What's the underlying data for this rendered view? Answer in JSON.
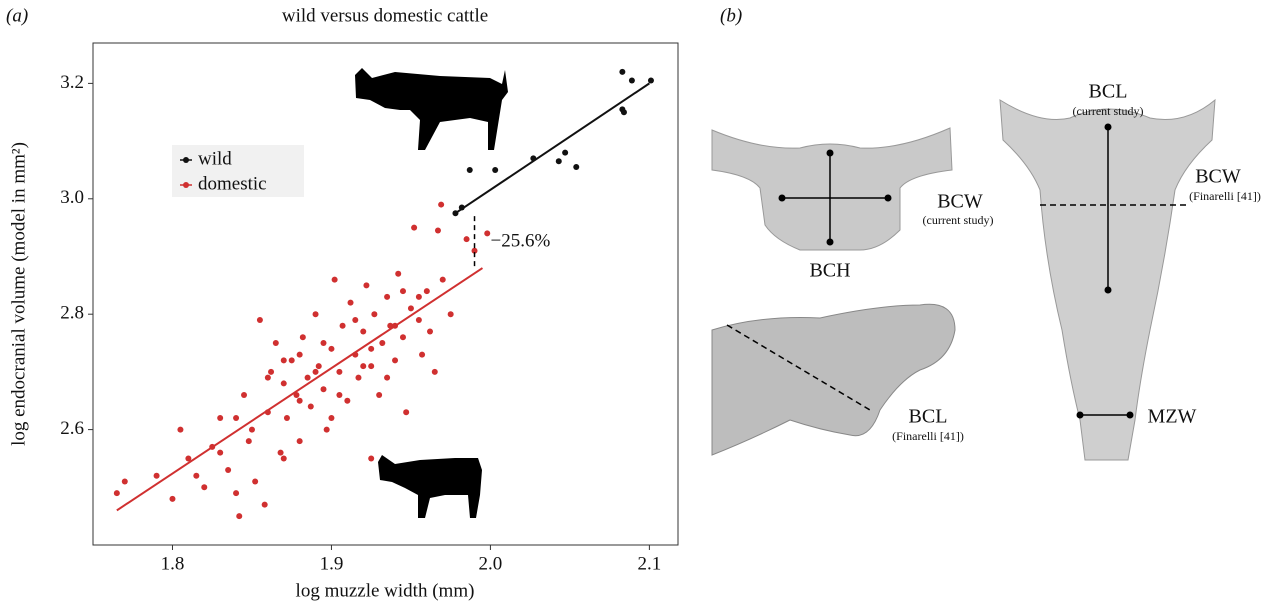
{
  "panels": [
    "(a)",
    "(b)"
  ],
  "chart_data": {
    "type": "scatter",
    "title": "wild versus domestic cattle",
    "xlabel": "log muzzle width (mm)",
    "ylabel": "log endocranial volume (model in mm²)",
    "xlim": [
      1.75,
      2.118
    ],
    "ylim": [
      2.4,
      3.27
    ],
    "xticks": [
      1.8,
      1.9,
      {
        "value": 2,
        "label": "2.0"
      },
      2.1
    ],
    "yticks": [
      2.6,
      2.8,
      {
        "value": 3,
        "label": "3.0"
      },
      3.2
    ],
    "grid": false,
    "series": [
      {
        "name": "wild",
        "color": "#111111",
        "x": [
          2.083,
          2.089,
          2.101,
          2.083,
          2.084,
          1.987,
          2.003,
          2.027,
          2.043,
          2.047,
          2.054,
          1.982,
          1.978
        ],
        "y": [
          3.22,
          3.205,
          3.205,
          3.155,
          3.15,
          3.05,
          3.05,
          3.07,
          3.065,
          3.08,
          3.055,
          2.985,
          2.975
        ],
        "trend": {
          "x": [
            1.978,
            2.1
          ],
          "y": [
            2.975,
            3.2
          ]
        }
      },
      {
        "name": "domestic",
        "color": "#d03030",
        "x": [
          1.765,
          1.77,
          1.79,
          1.8,
          1.805,
          1.81,
          1.815,
          1.82,
          1.825,
          1.83,
          1.835,
          1.84,
          1.842,
          1.845,
          1.848,
          1.85,
          1.852,
          1.855,
          1.858,
          1.86,
          1.862,
          1.865,
          1.868,
          1.87,
          1.872,
          1.875,
          1.878,
          1.88,
          1.882,
          1.885,
          1.887,
          1.89,
          1.892,
          1.895,
          1.897,
          1.9,
          1.902,
          1.905,
          1.907,
          1.91,
          1.912,
          1.915,
          1.917,
          1.92,
          1.922,
          1.925,
          1.927,
          1.93,
          1.932,
          1.935,
          1.937,
          1.94,
          1.942,
          1.945,
          1.947,
          1.95,
          1.952,
          1.955,
          1.957,
          1.96,
          1.962,
          1.965,
          1.967,
          1.969,
          1.97,
          1.975,
          1.985,
          1.99,
          1.998,
          1.86,
          1.88,
          1.895,
          1.905,
          1.915,
          1.925,
          1.935,
          1.945,
          1.955,
          1.89,
          1.87,
          1.9,
          1.92,
          1.94,
          1.88,
          1.84,
          1.83,
          1.87,
          1.925
        ],
        "y": [
          2.49,
          2.51,
          2.52,
          2.48,
          2.6,
          2.55,
          2.52,
          2.5,
          2.57,
          2.62,
          2.53,
          2.49,
          2.45,
          2.66,
          2.58,
          2.6,
          2.51,
          2.79,
          2.47,
          2.63,
          2.7,
          2.75,
          2.56,
          2.68,
          2.62,
          2.72,
          2.66,
          2.58,
          2.76,
          2.69,
          2.64,
          2.8,
          2.71,
          2.67,
          2.6,
          2.74,
          2.86,
          2.7,
          2.78,
          2.65,
          2.82,
          2.73,
          2.69,
          2.77,
          2.85,
          2.71,
          2.8,
          2.66,
          2.75,
          2.83,
          2.78,
          2.72,
          2.87,
          2.76,
          2.63,
          2.81,
          2.95,
          2.79,
          2.73,
          2.84,
          2.77,
          2.7,
          2.945,
          2.99,
          2.86,
          2.8,
          2.93,
          2.91,
          2.94,
          2.69,
          2.73,
          2.75,
          2.66,
          2.79,
          2.74,
          2.69,
          2.84,
          2.83,
          2.7,
          2.72,
          2.62,
          2.71,
          2.78,
          2.65,
          2.62,
          2.56,
          2.55,
          2.55
        ],
        "trend": {
          "x": [
            1.765,
            1.995
          ],
          "y": [
            2.46,
            2.88
          ]
        }
      }
    ],
    "gap": {
      "x": 1.99,
      "y": [
        2.97,
        2.88
      ],
      "label": "−25.6%"
    }
  },
  "diagram": {
    "labels": [
      "BCL",
      "(current study)",
      "BCW",
      "(Finarelli [41])",
      "BCW",
      "(current study)",
      "BCH",
      "BCL",
      "(Finarelli [41])",
      "MZW"
    ]
  }
}
